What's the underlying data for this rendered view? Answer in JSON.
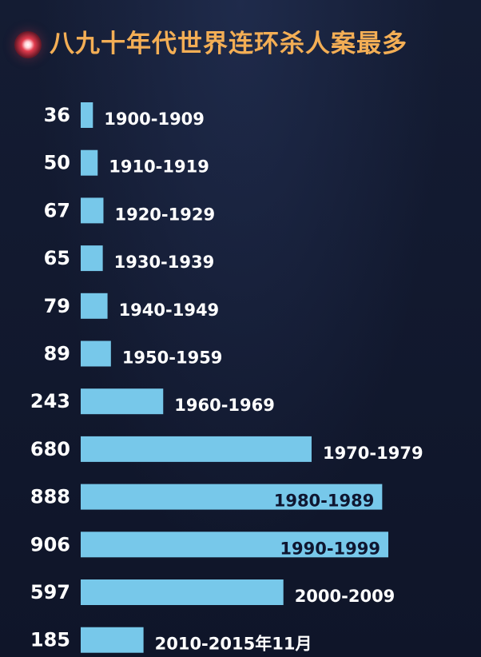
{
  "header": {
    "title": "八九十年代世界连环杀人案最多",
    "logo_icon": "red-glow-dot-icon"
  },
  "colors": {
    "background": "#10172c",
    "bar": "#77c8ea",
    "title": "#f3ae55",
    "value_text": "#ffffff",
    "label_text_outside": "#ffffff",
    "label_text_inside": "#0f1630"
  },
  "chart_data": {
    "type": "bar",
    "orientation": "horizontal",
    "title": "八九十年代世界连环杀人案最多",
    "categories": [
      "1900-1909",
      "1910-1919",
      "1920-1929",
      "1930-1939",
      "1940-1949",
      "1950-1959",
      "1960-1969",
      "1970-1979",
      "1980-1989",
      "1990-1999",
      "2000-2009",
      "2010-2015年11月"
    ],
    "values": [
      36,
      50,
      67,
      65,
      79,
      89,
      243,
      680,
      888,
      906,
      597,
      185
    ],
    "value_labels": [
      "36",
      "50",
      "67",
      "65",
      "79",
      "89",
      "243",
      "680",
      "888",
      "906",
      "597",
      "185"
    ],
    "xlim": [
      0,
      906
    ],
    "grid": false,
    "legend": "none"
  }
}
